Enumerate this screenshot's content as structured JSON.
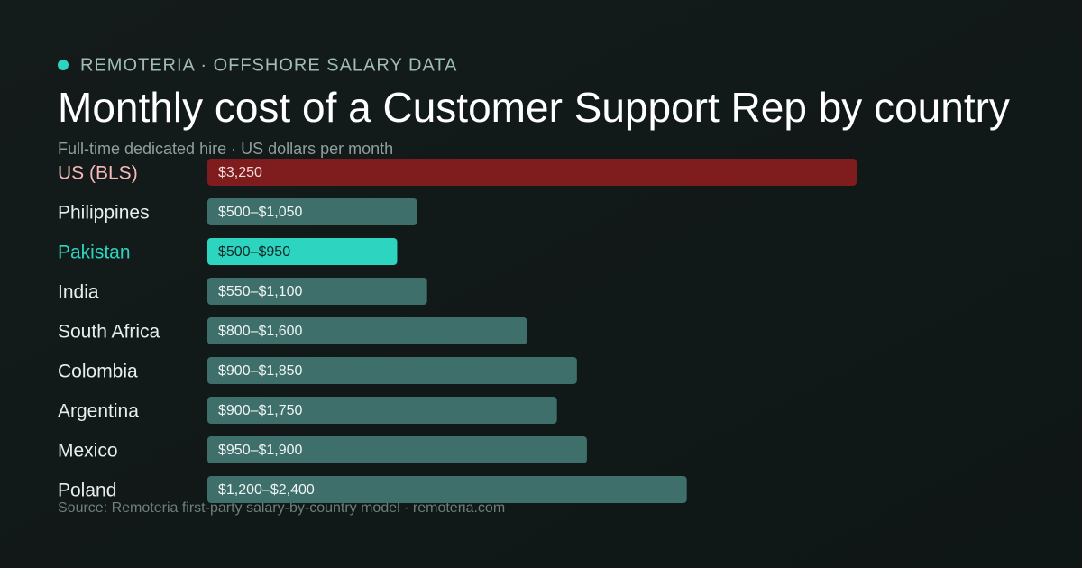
{
  "chart_data": {
    "type": "range-bar",
    "kicker": "REMOTERIA · OFFSHORE SALARY DATA",
    "title": "Monthly cost of a Customer Support Rep by country",
    "subtitle": "Full-time dedicated hire · US dollars per month",
    "source": "Source: Remoteria first-party salary-by-country model · remoteria.com",
    "categories": [
      "US (BLS)",
      "Philippines",
      "Pakistan",
      "India",
      "South Africa",
      "Colombia",
      "Argentina",
      "Mexico",
      "Poland"
    ],
    "low": [
      3250,
      500,
      500,
      550,
      800,
      900,
      900,
      950,
      1200
    ],
    "high": [
      3250,
      1050,
      950,
      1100,
      1600,
      1850,
      1750,
      1900,
      2400
    ],
    "value_labels": [
      "$3,250",
      "$500–$1,050",
      "$500–$950",
      "$550–$1,100",
      "$800–$1,600",
      "$900–$1,850",
      "$900–$1,750",
      "$950–$1,900",
      "$1,200–$2,400"
    ],
    "colors": [
      "#7f1c1e",
      "#3e6f6a",
      "#2dd4bf",
      "#3e6f6a",
      "#3e6f6a",
      "#3e6f6a",
      "#3e6f6a",
      "#3e6f6a",
      "#3e6f6a"
    ],
    "label_colors": [
      "#f6b8b8",
      "#e8eeed",
      "#2dd4bf",
      "#e8eeed",
      "#e8eeed",
      "#e8eeed",
      "#e8eeed",
      "#e8eeed",
      "#e8eeed"
    ],
    "value_label_colors": [
      "#f4dada",
      "#eef4f3",
      "#0f2a27",
      "#eef4f3",
      "#eef4f3",
      "#eef4f3",
      "#eef4f3",
      "#eef4f3",
      "#eef4f3"
    ]
  }
}
